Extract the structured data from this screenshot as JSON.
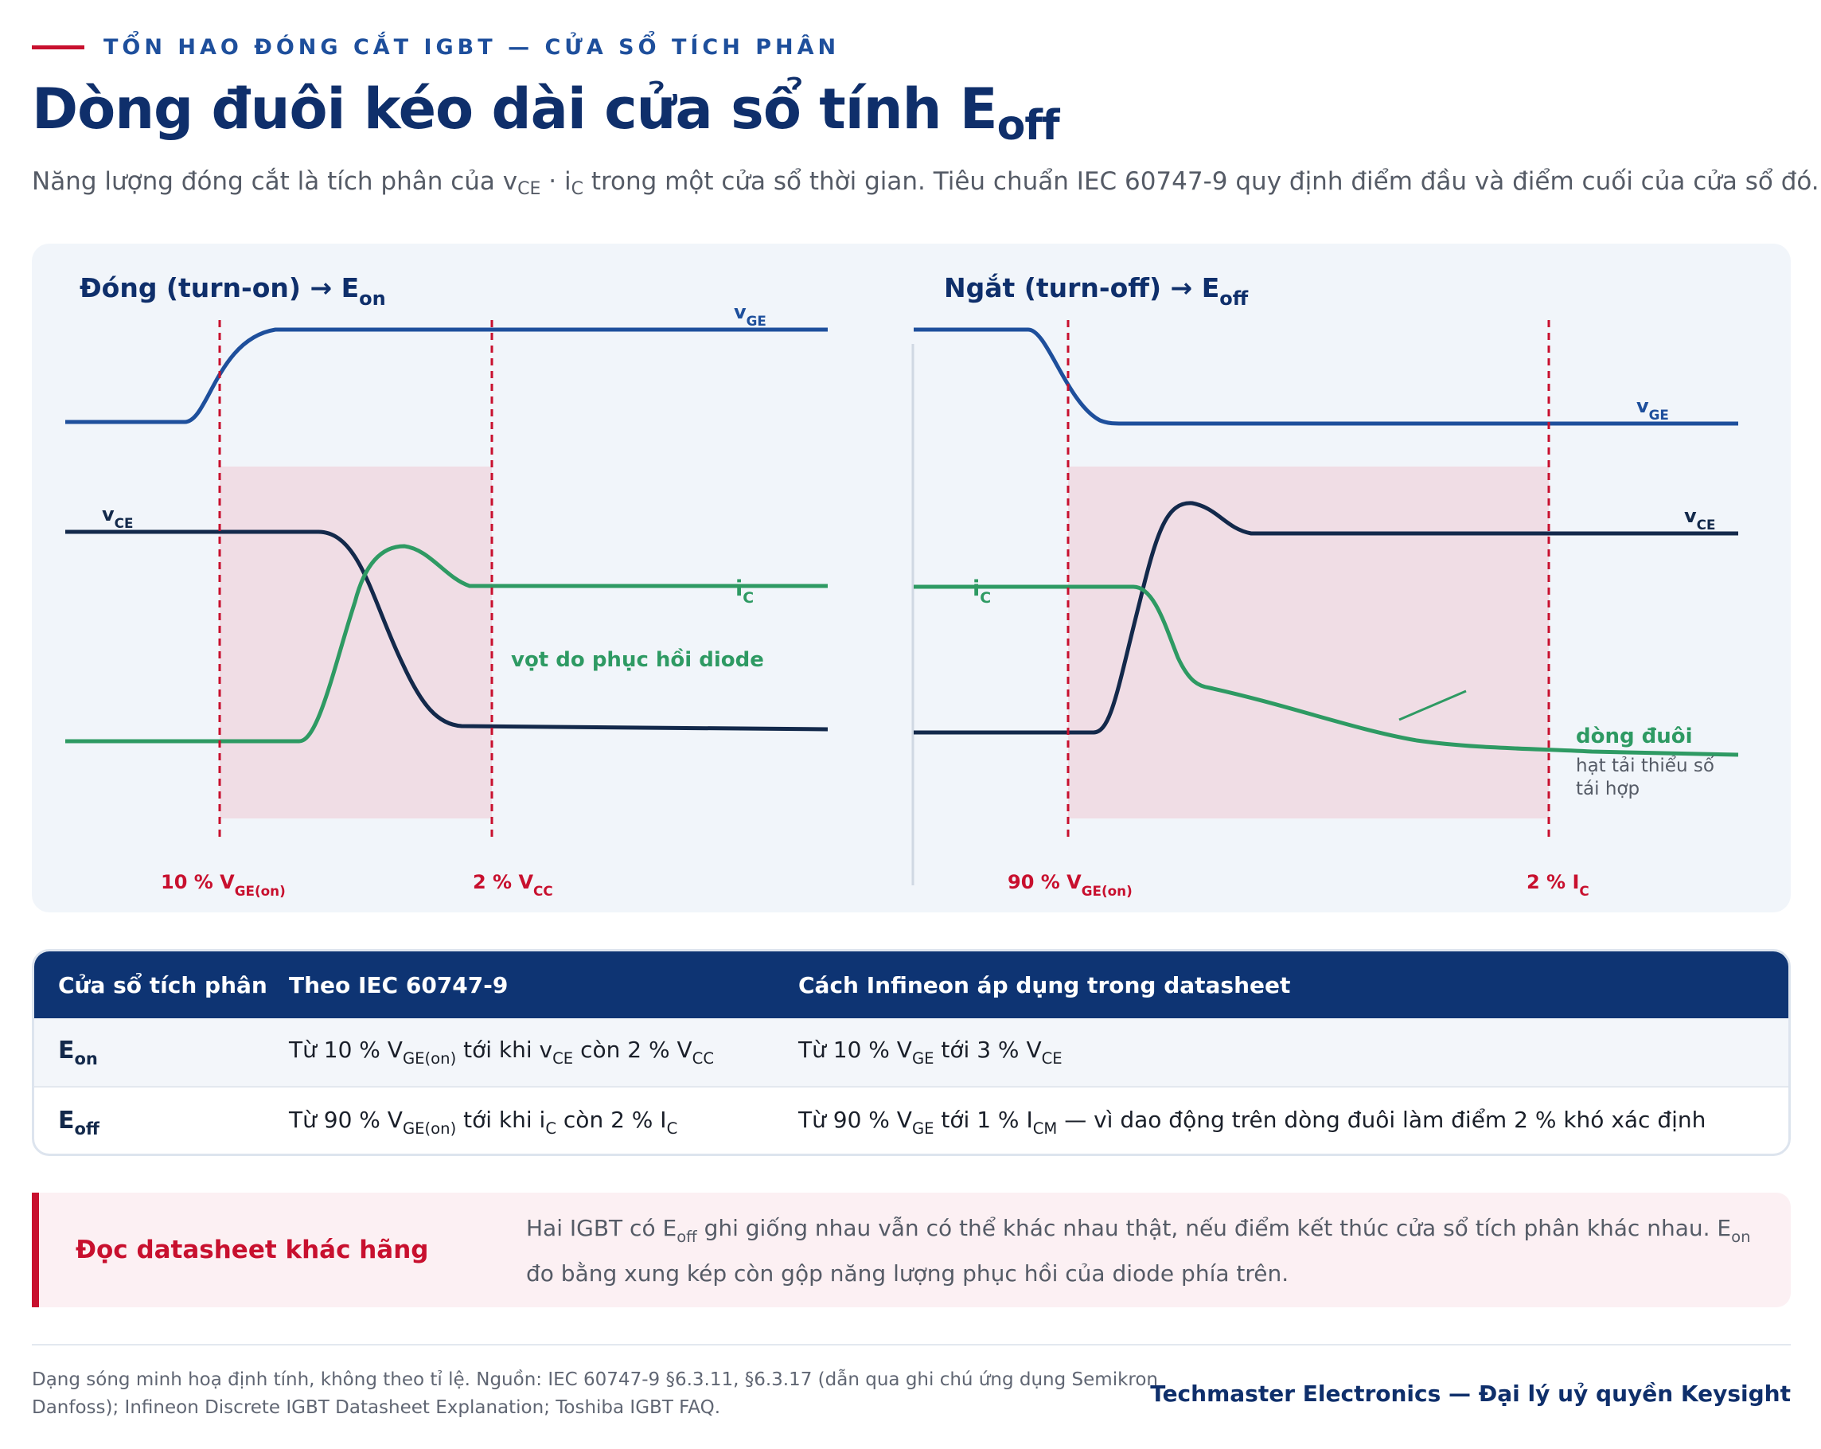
{
  "header": {
    "kicker": "TỔN HAO ĐÓNG CẮT IGBT — CỬA SỔ TÍCH PHÂN",
    "title_main": "Dòng đuôi kéo dài cửa sổ tính E",
    "title_sub": "off",
    "subtitle_pre": "Năng lượng đóng cắt là tích phân của v",
    "subtitle_sub1": "CE",
    "subtitle_mid": " · i",
    "subtitle_sub2": "C",
    "subtitle_post": " trong một cửa sổ thời gian. Tiêu chuẩn IEC 60747-9 quy định điểm đầu và điểm cuối của cửa sổ đó."
  },
  "diagram": {
    "turn_on": {
      "title_main": "Đóng (turn-on) → E",
      "title_sub": "on",
      "vge_label": "v",
      "vge_sub": "GE",
      "vce_label": "v",
      "vce_sub": "CE",
      "ic_label": "i",
      "ic_sub": "C",
      "annotation": "vọt do phục hồi diode",
      "start_marker": "10 % V",
      "start_marker_sub": "GE(on)",
      "end_marker": "2 % V",
      "end_marker_sub": "CC"
    },
    "turn_off": {
      "title_main": "Ngắt (turn-off) → E",
      "title_sub": "off",
      "vge_label": "v",
      "vge_sub": "GE",
      "vce_label": "v",
      "vce_sub": "CE",
      "ic_label": "i",
      "ic_sub": "C",
      "tail_title": "dòng đuôi",
      "tail_note_1": "hạt tải thiểu số",
      "tail_note_2": "tái hợp",
      "start_marker": "90 % V",
      "start_marker_sub": "GE(on)",
      "end_marker": "2 % I",
      "end_marker_sub": "C"
    },
    "colors": {
      "vge": "#1e4f9c",
      "vce": "#13294b",
      "ic": "#2e9a63",
      "marker": "#c8102e",
      "window": "#f0dde5"
    }
  },
  "table": {
    "headers": [
      "Cửa sổ tích phân",
      "Theo IEC 60747-9",
      "Cách Infineon áp dụng trong datasheet"
    ],
    "rows": [
      {
        "name": "E",
        "name_sub": "on",
        "iec": [
          [
            "Từ 10 % V",
            ""
          ],
          [
            "GE(on)",
            "s"
          ],
          [
            " tới khi v",
            ""
          ],
          [
            "CE",
            "s"
          ],
          [
            " còn 2 % V",
            ""
          ],
          [
            "CC",
            "s"
          ]
        ],
        "infineon": [
          [
            "Từ 10 % V",
            ""
          ],
          [
            "GE",
            "s"
          ],
          [
            " tới 3 % V",
            ""
          ],
          [
            "CE",
            "s"
          ]
        ]
      },
      {
        "name": "E",
        "name_sub": "off",
        "iec": [
          [
            "Từ 90 % V",
            ""
          ],
          [
            "GE(on)",
            "s"
          ],
          [
            " tới khi i",
            ""
          ],
          [
            "C",
            "s"
          ],
          [
            " còn 2 % I",
            ""
          ],
          [
            "C",
            "s"
          ]
        ],
        "infineon": [
          [
            "Từ 90 % V",
            ""
          ],
          [
            "GE",
            "s"
          ],
          [
            " tới 1 % I",
            ""
          ],
          [
            "CM",
            "s"
          ],
          [
            " — vì dao động trên dòng đuôi làm điểm 2 % khó xác định",
            ""
          ]
        ]
      }
    ]
  },
  "callout": {
    "title": "Đọc datasheet khác hãng",
    "text": [
      [
        "Hai IGBT có E",
        ""
      ],
      [
        "off",
        "s"
      ],
      [
        " ghi giống nhau vẫn có thể khác nhau thật, nếu điểm kết thúc cửa sổ tích phân khác nhau. E",
        ""
      ],
      [
        "on",
        "s"
      ],
      [
        " đo bằng xung kép còn gộp năng lượng phục hồi của diode phía trên.",
        ""
      ]
    ]
  },
  "footer": {
    "source": "Dạng sóng minh hoạ định tính, không theo tỉ lệ. Nguồn: IEC 60747-9 §6.3.11, §6.3.17 (dẫn qua ghi chú ứng dụng Semikron Danfoss); Infineon Discrete IGBT Datasheet Explanation; Toshiba IGBT FAQ.",
    "brand": "Techmaster Electronics — Đại lý uỷ quyền Keysight"
  }
}
